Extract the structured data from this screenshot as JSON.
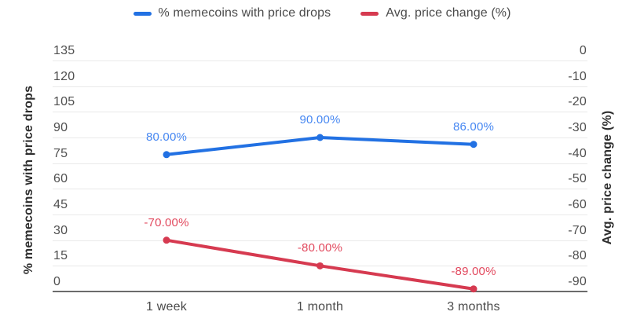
{
  "chart_data": {
    "type": "line",
    "categories": [
      "1 week",
      "1 month",
      "3 months"
    ],
    "series": [
      {
        "name": "% memecoins with price drops",
        "axis": "left",
        "color": "#2271e3",
        "label_color": "#4687f2",
        "values": [
          80,
          90,
          86
        ],
        "point_labels": [
          "80.00%",
          "90.00%",
          "86.00%"
        ]
      },
      {
        "name": "Avg. price change (%)",
        "axis": "right",
        "color": "#d63a50",
        "label_color": "#e2495e",
        "values": [
          -70,
          -80,
          -89
        ],
        "point_labels": [
          "-70.00%",
          "-80.00%",
          "-89.00%"
        ]
      }
    ],
    "left_axis": {
      "title": "% memecoins with price drops",
      "min": 0,
      "max": 135,
      "step": 15,
      "ticks": [
        "135",
        "120",
        "105",
        "90",
        "75",
        "60",
        "45",
        "30",
        "15",
        "0"
      ]
    },
    "right_axis": {
      "title": "Avg. price change (%)",
      "min": -90,
      "max": 0,
      "step": 10,
      "ticks": [
        "0",
        "-10",
        "-20",
        "-30",
        "-40",
        "-50",
        "-60",
        "-70",
        "-80",
        "-90"
      ]
    },
    "grid": true,
    "legend_position": "top",
    "colors": {
      "gridline": "#e9e9e9",
      "axis_line": "#6b6b6b",
      "tick_text": "#4f4f4f",
      "title_text": "#2e2e2e",
      "legend_text": "#4a4a4a",
      "background": "#ffffff"
    }
  }
}
